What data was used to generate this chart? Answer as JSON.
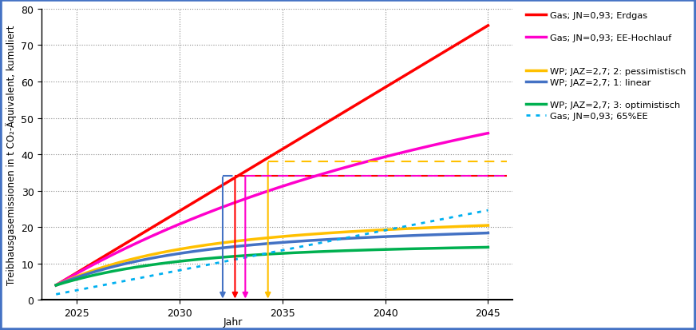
{
  "years_start": 2024,
  "years_end": 2045,
  "xlim": [
    2023.3,
    2046.2
  ],
  "ylim": [
    0,
    80
  ],
  "xticks": [
    2025,
    2030,
    2035,
    2040,
    2045
  ],
  "yticks": [
    0,
    10,
    20,
    30,
    40,
    50,
    60,
    70,
    80
  ],
  "ylabel": "Treibhausgasemissionen in t CO₂-Äquivalent, kumuliert",
  "background_color": "#ffffff",
  "border_color": "#4472C4",
  "series": [
    {
      "label": "Gas; JN=0,93; Erdgas",
      "color": "#FF0000",
      "linewidth": 2.5,
      "linestyle": "solid",
      "v0": 4.0,
      "params": [
        3.4,
        0.0,
        0.0
      ]
    },
    {
      "label": "Gas; JN=0,93; EE-Hochlauf",
      "color": "#FF00CC",
      "linewidth": 2.5,
      "linestyle": "solid",
      "v0": 4.0,
      "params": [
        3.3,
        0.5,
        0.068
      ]
    },
    {
      "label": "WP; JAZ=2,7; 2: pessimistisch",
      "color": "#FFC000",
      "linewidth": 2.5,
      "linestyle": "solid",
      "v0": 4.0,
      "params": [
        2.6,
        0.15,
        0.18
      ]
    },
    {
      "label": "WP; JAZ=2,7; 1: linear",
      "color": "#4472C4",
      "linewidth": 2.5,
      "linestyle": "solid",
      "v0": 4.0,
      "params": [
        2.3,
        0.12,
        0.18
      ]
    },
    {
      "label": "WP; JAZ=2,7; 3: optimistisch",
      "color": "#00B050",
      "linewidth": 2.5,
      "linestyle": "solid",
      "v0": 4.0,
      "params": [
        1.75,
        0.06,
        0.18
      ]
    },
    {
      "label": "Gas; JN=0,93; 65%EE",
      "color": "#00B0F0",
      "linewidth": 2.0,
      "linestyle": "dotted",
      "v0": 1.5,
      "params": [
        1.1,
        0.0,
        0.0
      ]
    }
  ],
  "arrows": [
    {
      "x": 2032.1,
      "color": "#4472C4",
      "hline": 34.0
    },
    {
      "x": 2032.7,
      "color": "#FF0000",
      "hline": 34.0
    },
    {
      "x": 2033.2,
      "color": "#FF00CC",
      "hline": 34.0
    },
    {
      "x": 2034.3,
      "color": "#FFC000",
      "hline": 38.0
    }
  ],
  "jahr_x": 2032.6,
  "legend_entries": [
    {
      "label": "Gas; JN=0,93; Erdgas",
      "color": "#FF0000",
      "ls": "solid",
      "lw": 2.5
    },
    {
      "label": "",
      "color": "none",
      "ls": "none",
      "lw": 0
    },
    {
      "label": "Gas; JN=0,93; EE-Hochlauf",
      "color": "#FF00CC",
      "ls": "solid",
      "lw": 2.5
    },
    {
      "label": "",
      "color": "none",
      "ls": "none",
      "lw": 0
    },
    {
      "label": "",
      "color": "none",
      "ls": "none",
      "lw": 0
    },
    {
      "label": "WP; JAZ=2,7; 2: pessimistisch",
      "color": "#FFC000",
      "ls": "solid",
      "lw": 2.5
    },
    {
      "label": "WP; JAZ=2,7; 1: linear",
      "color": "#4472C4",
      "ls": "solid",
      "lw": 2.5
    },
    {
      "label": "",
      "color": "none",
      "ls": "none",
      "lw": 0
    },
    {
      "label": "WP; JAZ=2,7; 3: optimistisch",
      "color": "#00B050",
      "ls": "solid",
      "lw": 2.5
    },
    {
      "label": "Gas; JN=0,93; 65%EE",
      "color": "#00B0F0",
      "ls": "dotted",
      "lw": 2.0
    }
  ]
}
